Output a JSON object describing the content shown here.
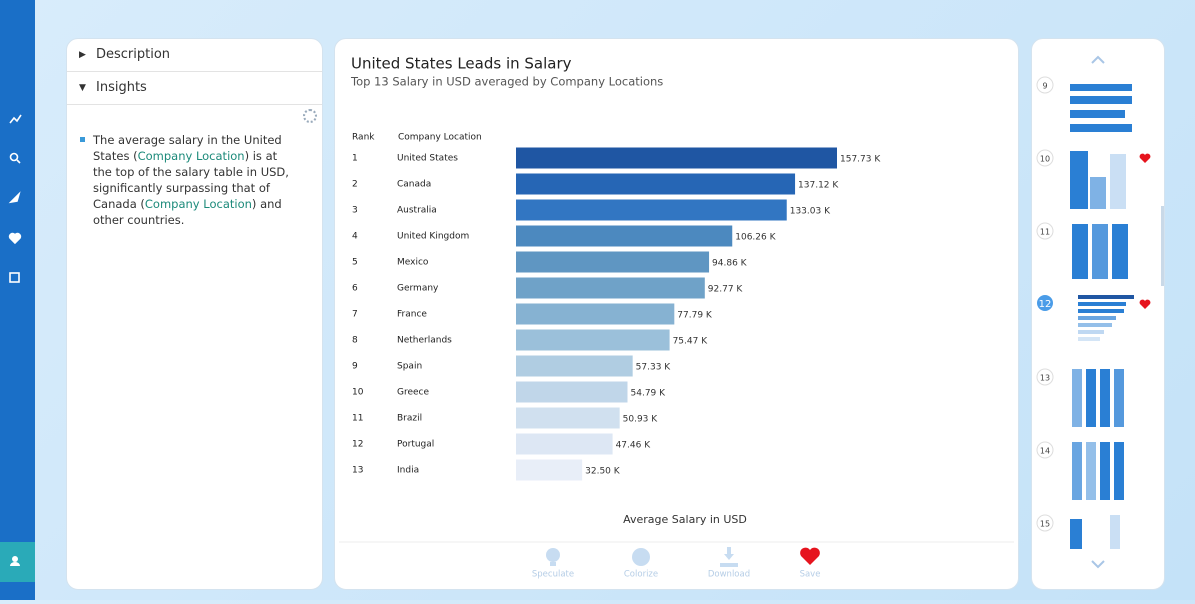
{
  "tabs": [
    "Description",
    "Insights"
  ],
  "insight": [
    "The average salary in the United States (",
    "Company Location",
    ") is at the top of the salary table in USD, significantly surpassing that of Canada (",
    "Company Location",
    ") and other countries."
  ],
  "chart_data": {
    "type": "bar",
    "orientation": "horizontal",
    "title": "United States Leads in Salary",
    "subtitle": "Top 13 Salary in USD averaged by Company Locations",
    "columns": [
      "Rank",
      "Company Location"
    ],
    "ranks": [
      1,
      2,
      3,
      4,
      5,
      6,
      7,
      8,
      9,
      10,
      11,
      12,
      13
    ],
    "categories": [
      "United States",
      "Canada",
      "Australia",
      "United Kingdom",
      "Mexico",
      "Germany",
      "France",
      "Netherlands",
      "Spain",
      "Greece",
      "Brazil",
      "Portugal",
      "India"
    ],
    "values": [
      157.73,
      137.12,
      133.03,
      106.26,
      94.86,
      92.77,
      77.79,
      75.47,
      57.33,
      54.79,
      50.93,
      47.46,
      32.5
    ],
    "value_labels": [
      "157.73 K",
      "137.12 K",
      "133.03 K",
      "106.26 K",
      "94.86 K",
      "92.77 K",
      "77.79 K",
      "75.47 K",
      "57.33 K",
      "54.79 K",
      "50.93 K",
      "47.46 K",
      "32.50 K"
    ],
    "colors": [
      "#1f56a3",
      "#2666b5",
      "#3276c2",
      "#4c89bf",
      "#5f96c2",
      "#6fa2c8",
      "#86b2d2",
      "#9bc0da",
      "#b0cde2",
      "#c0d6e9",
      "#d0e0ef",
      "#dde7f4",
      "#e8eef8"
    ],
    "x_label": "Average Salary in USD"
  },
  "actions": [
    "Speculate",
    "Colorize",
    "Download",
    "Save"
  ],
  "thumbnails": [
    9,
    10,
    11,
    12,
    13,
    14,
    15
  ]
}
